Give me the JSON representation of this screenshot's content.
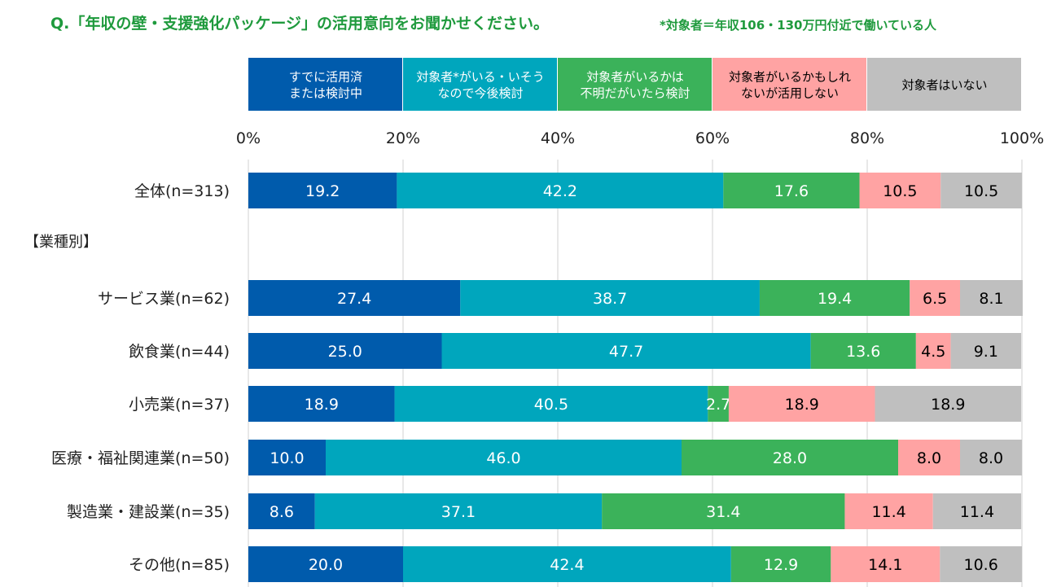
{
  "title": "Q.「年収の壁・支援強化パッケージ」の活用意向をお聞かせください。",
  "note": "*対象者＝年収106・130万円付近で働いている人",
  "section_label": "【業種別】",
  "colors": {
    "series": [
      "#005bac",
      "#00a6bd",
      "#3bb25a",
      "#ffa3a3",
      "#bfbfbf"
    ],
    "series_text": [
      "#ffffff",
      "#ffffff",
      "#ffffff",
      "#000000",
      "#000000"
    ],
    "grid": "#d9d9d9",
    "title": "#1f9a3d"
  },
  "chart_data": {
    "type": "bar",
    "orientation": "horizontal",
    "stacked": true,
    "x_axis": {
      "range": [
        0,
        100
      ],
      "ticks": [
        "0%",
        "20%",
        "40%",
        "60%",
        "80%",
        "100%"
      ],
      "position": "top"
    },
    "grid": true,
    "legend_position": "top",
    "categories": [
      "全体(n=313)",
      "サービス業(n=62)",
      "飲食業(n=44)",
      "小売業(n=37)",
      "医療・福祉関連業(n=50)",
      "製造業・建設業(n=35)",
      "その他(n=85)"
    ],
    "series": [
      {
        "name": "すでに活用済または検討中",
        "legend_lines": [
          "すでに活用済",
          "または検討中"
        ],
        "values": [
          19.2,
          27.4,
          25.0,
          18.9,
          10.0,
          8.6,
          20.0
        ],
        "labels": [
          "19.2",
          "27.4",
          "25.0",
          "18.9",
          "10.0",
          "8.6",
          "20.0"
        ]
      },
      {
        "name": "対象者*がいる・いそうなので今後検討",
        "legend_lines": [
          "対象者*がいる・いそう",
          "なので今後検討"
        ],
        "values": [
          42.2,
          38.7,
          47.7,
          40.5,
          46.0,
          37.1,
          42.4
        ],
        "labels": [
          "42.2",
          "38.7",
          "47.7",
          "40.5",
          "46.0",
          "37.1",
          "42.4"
        ]
      },
      {
        "name": "対象者がいるかは不明だがいたら検討",
        "legend_lines": [
          "対象者がいるかは",
          "不明だがいたら検討"
        ],
        "values": [
          17.6,
          19.4,
          13.6,
          2.7,
          28.0,
          31.4,
          12.9
        ],
        "labels": [
          "17.6",
          "19.4",
          "13.6",
          "2.7",
          "28.0",
          "31.4",
          "12.9"
        ]
      },
      {
        "name": "対象者がいるかもしれないが活用しない",
        "legend_lines": [
          "対象者がいるかもしれ",
          "ないが活用しない"
        ],
        "values": [
          10.5,
          6.5,
          4.5,
          18.9,
          8.0,
          11.4,
          14.1
        ],
        "labels": [
          "10.5",
          "6.5",
          "4.5",
          "18.9",
          "8.0",
          "11.4",
          "14.1"
        ]
      },
      {
        "name": "対象者はいない",
        "legend_lines": [
          "対象者はいない"
        ],
        "values": [
          10.5,
          8.1,
          9.1,
          18.9,
          8.0,
          11.4,
          10.6
        ],
        "labels": [
          "10.5",
          "8.1",
          "9.1",
          "18.9",
          "8.0",
          "11.4",
          "10.6"
        ]
      }
    ]
  }
}
